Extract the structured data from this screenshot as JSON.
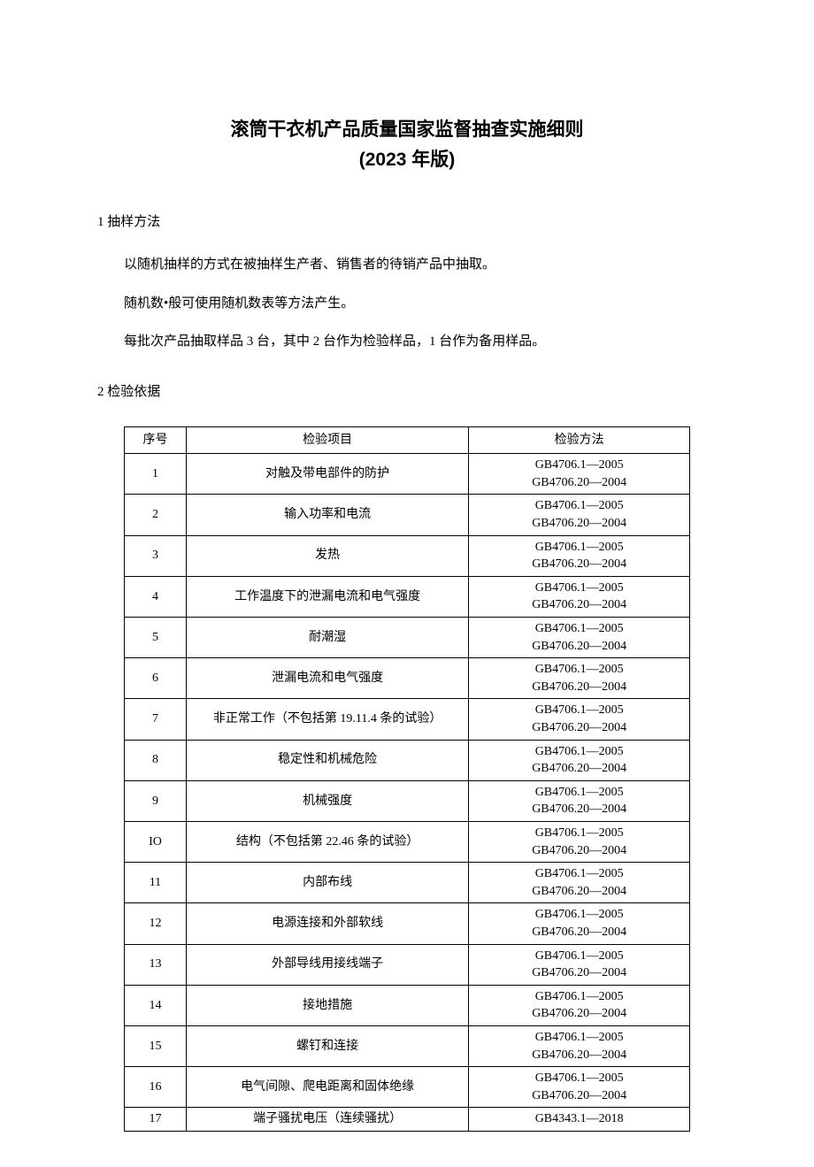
{
  "doc": {
    "title": "滚筒干衣机产品质量国家监督抽查实施细则",
    "subtitle": "(2023 年版)",
    "section1": {
      "heading": "1 抽样方法",
      "p1": "以随机抽样的方式在被抽样生产者、销售者的待销产品中抽取。",
      "p2": "随机数•般可使用随机数表等方法产生。",
      "p3": "每批次产品抽取样品 3 台，其中 2 台作为检验样品，1 台作为备用样品。"
    },
    "section2": {
      "heading": "2 检验依据"
    },
    "table": {
      "headers": {
        "seq": "序号",
        "item": "检验项目",
        "method": "检验方法"
      },
      "rows": [
        {
          "seq": "1",
          "item": "对触及带电部件的防护",
          "method1": "GB4706.1—2005",
          "method2": "GB4706.20—2004"
        },
        {
          "seq": "2",
          "item": "输入功率和电流",
          "method1": "GB4706.1—2005",
          "method2": "GB4706.20—2004"
        },
        {
          "seq": "3",
          "item": "发热",
          "method1": "GB4706.1—2005",
          "method2": "GB4706.20—2004"
        },
        {
          "seq": "4",
          "item": "工作温度下的泄漏电流和电气强度",
          "method1": "GB4706.1—2005",
          "method2": "GB4706.20—2004"
        },
        {
          "seq": "5",
          "item": "耐潮湿",
          "method1": "GB4706.1—2005",
          "method2": "GB4706.20—2004"
        },
        {
          "seq": "6",
          "item": "泄漏电流和电气强度",
          "method1": "GB4706.1—2005",
          "method2": "GB4706.20—2004"
        },
        {
          "seq": "7",
          "item": "非正常工作（不包括第 19.11.4 条的试验）",
          "method1": "GB4706.1—2005",
          "method2": "GB4706.20—2004"
        },
        {
          "seq": "8",
          "item": "稳定性和机械危险",
          "method1": "GB4706.1—2005",
          "method2": "GB4706.20—2004"
        },
        {
          "seq": "9",
          "item": "机械强度",
          "method1": "GB4706.1—2005",
          "method2": "GB4706.20—2004"
        },
        {
          "seq": "IO",
          "item": "结构（不包括第 22.46 条的试验）",
          "method1": "GB4706.1—2005",
          "method2": "GB4706.20—2004"
        },
        {
          "seq": "11",
          "item": "内部布线",
          "method1": "GB4706.1—2005",
          "method2": "GB4706.20—2004"
        },
        {
          "seq": "12",
          "item": "电源连接和外部软线",
          "method1": "GB4706.1—2005",
          "method2": "GB4706.20—2004"
        },
        {
          "seq": "13",
          "item": "外部导线用接线端子",
          "method1": "GB4706.1—2005",
          "method2": "GB4706.20—2004"
        },
        {
          "seq": "14",
          "item": "接地措施",
          "method1": "GB4706.1—2005",
          "method2": "GB4706.20—2004"
        },
        {
          "seq": "15",
          "item": "螺钉和连接",
          "method1": "GB4706.1—2005",
          "method2": "GB4706.20—2004"
        },
        {
          "seq": "16",
          "item": "电气间隙、爬电距离和固体绝缘",
          "method1": "GB4706.1—2005",
          "method2": "GB4706.20—2004"
        },
        {
          "seq": "17",
          "item": "端子骚扰电压（连续骚扰）",
          "method1": "GB4343.1—2018",
          "method2": ""
        }
      ]
    }
  },
  "style": {
    "background_color": "#ffffff",
    "text_color": "#000000",
    "border_color": "#000000",
    "title_fontsize": 21,
    "body_fontsize": 15,
    "table_fontsize": 14
  }
}
